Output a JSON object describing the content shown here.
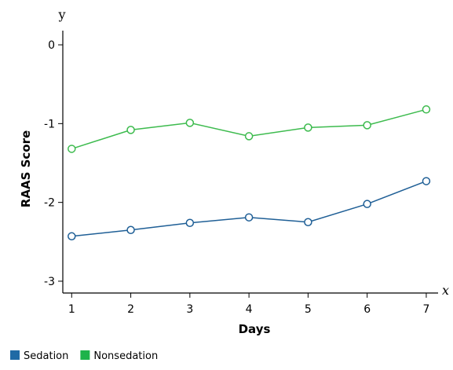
{
  "chart_data": {
    "type": "line",
    "xlabel": "Days",
    "ylabel": "RAAS Score",
    "x_axis_letter": "x",
    "y_axis_letter": "y",
    "x": [
      1,
      2,
      3,
      4,
      5,
      6,
      7
    ],
    "xlim": [
      0.85,
      7.2
    ],
    "ylim": [
      -3.15,
      0.18
    ],
    "x_ticks": [
      1,
      2,
      3,
      4,
      5,
      6,
      7
    ],
    "x_tick_labels": [
      "1",
      "2",
      "3",
      "4",
      "5",
      "6",
      "7"
    ],
    "y_ticks": [
      0,
      -1,
      -2,
      -3
    ],
    "y_tick_labels": [
      "0",
      "-1",
      "-2",
      "-3"
    ],
    "grid": false,
    "legend_position": "bottom-left",
    "series": [
      {
        "name": "Sedation",
        "color": "#1f5f96",
        "legend_color": "#1f6aa5",
        "values": [
          -2.43,
          -2.35,
          -2.26,
          -2.19,
          -2.25,
          -2.02,
          -1.73
        ]
      },
      {
        "name": "Nonsedation",
        "color": "#3dbb4e",
        "legend_color": "#1db34a",
        "values": [
          -1.32,
          -1.08,
          -0.99,
          -1.16,
          -1.05,
          -1.02,
          -0.82
        ]
      }
    ]
  }
}
